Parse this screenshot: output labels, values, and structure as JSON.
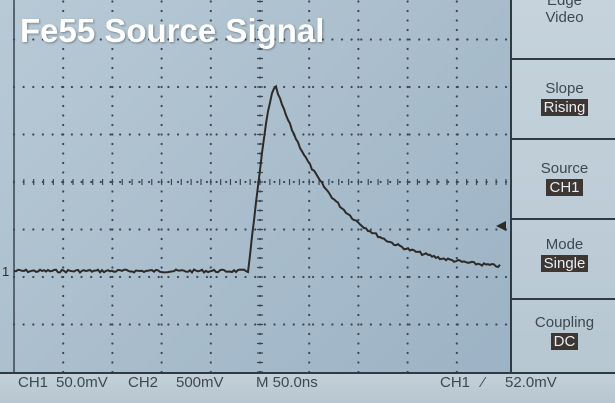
{
  "overlay": {
    "title": "Fe55 Source Signal"
  },
  "trigger_menu": {
    "items": [
      {
        "label": "Edge",
        "value": "Video",
        "value_style": "plain"
      },
      {
        "label": "Slope",
        "value": "Rising",
        "value_style": "inverted"
      },
      {
        "label": "Source",
        "value": "CH1",
        "value_style": "inverted"
      },
      {
        "label": "Mode",
        "value": "Single",
        "value_style": "inverted"
      },
      {
        "label": "Coupling",
        "value": "DC",
        "value_style": "inverted"
      }
    ]
  },
  "status_bar": {
    "ch1_label": "CH1",
    "ch1_scale": "50.0mV",
    "ch2_label": "CH2",
    "ch2_scale": "500mV",
    "timebase": "M 50.0ns",
    "trigger_source": "CH1",
    "trigger_slope_glyph": "⁄",
    "trigger_level": "52.0mV"
  },
  "screen": {
    "channel_marker": "1",
    "trace_color": "#2e2a28",
    "grid_color": "#3a4650"
  }
}
